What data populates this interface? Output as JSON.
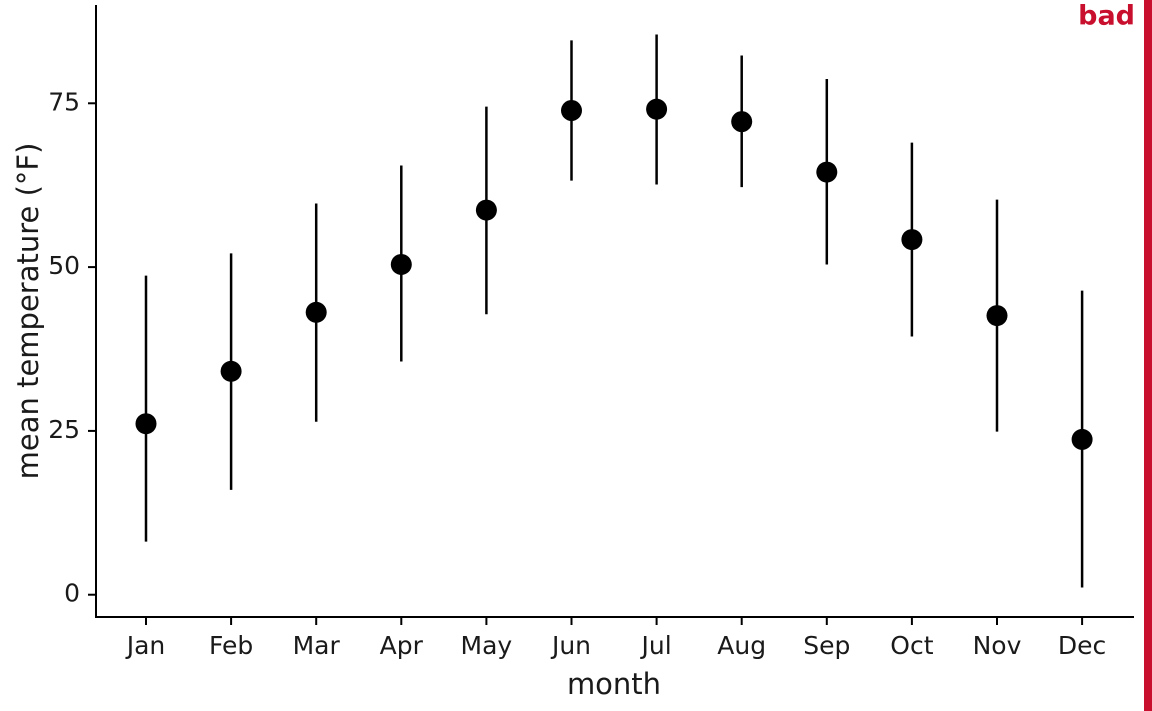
{
  "chart_data": {
    "type": "pointrange",
    "x_label": "month",
    "y_label": "mean temperature (°F)",
    "annotation": "bad",
    "categories": [
      "Jan",
      "Feb",
      "Mar",
      "Apr",
      "May",
      "Jun",
      "Jul",
      "Aug",
      "Sep",
      "Oct",
      "Nov",
      "Dec"
    ],
    "values": [
      26.1,
      34.1,
      43.1,
      50.4,
      58.7,
      73.9,
      74.1,
      72.2,
      64.5,
      54.2,
      42.6,
      23.7
    ],
    "lower": [
      8.1,
      16.0,
      26.4,
      35.6,
      42.8,
      63.2,
      62.6,
      62.2,
      50.4,
      39.4,
      24.9,
      1.1
    ],
    "upper": [
      48.7,
      52.1,
      59.7,
      65.5,
      74.5,
      84.6,
      85.5,
      82.3,
      78.7,
      69.0,
      60.3,
      46.4
    ],
    "color": "#000000",
    "annotation_color": "#c8102e",
    "ylim": [
      -3.4,
      90
    ],
    "yticks": [
      0,
      25,
      50,
      75
    ],
    "grid": false
  }
}
